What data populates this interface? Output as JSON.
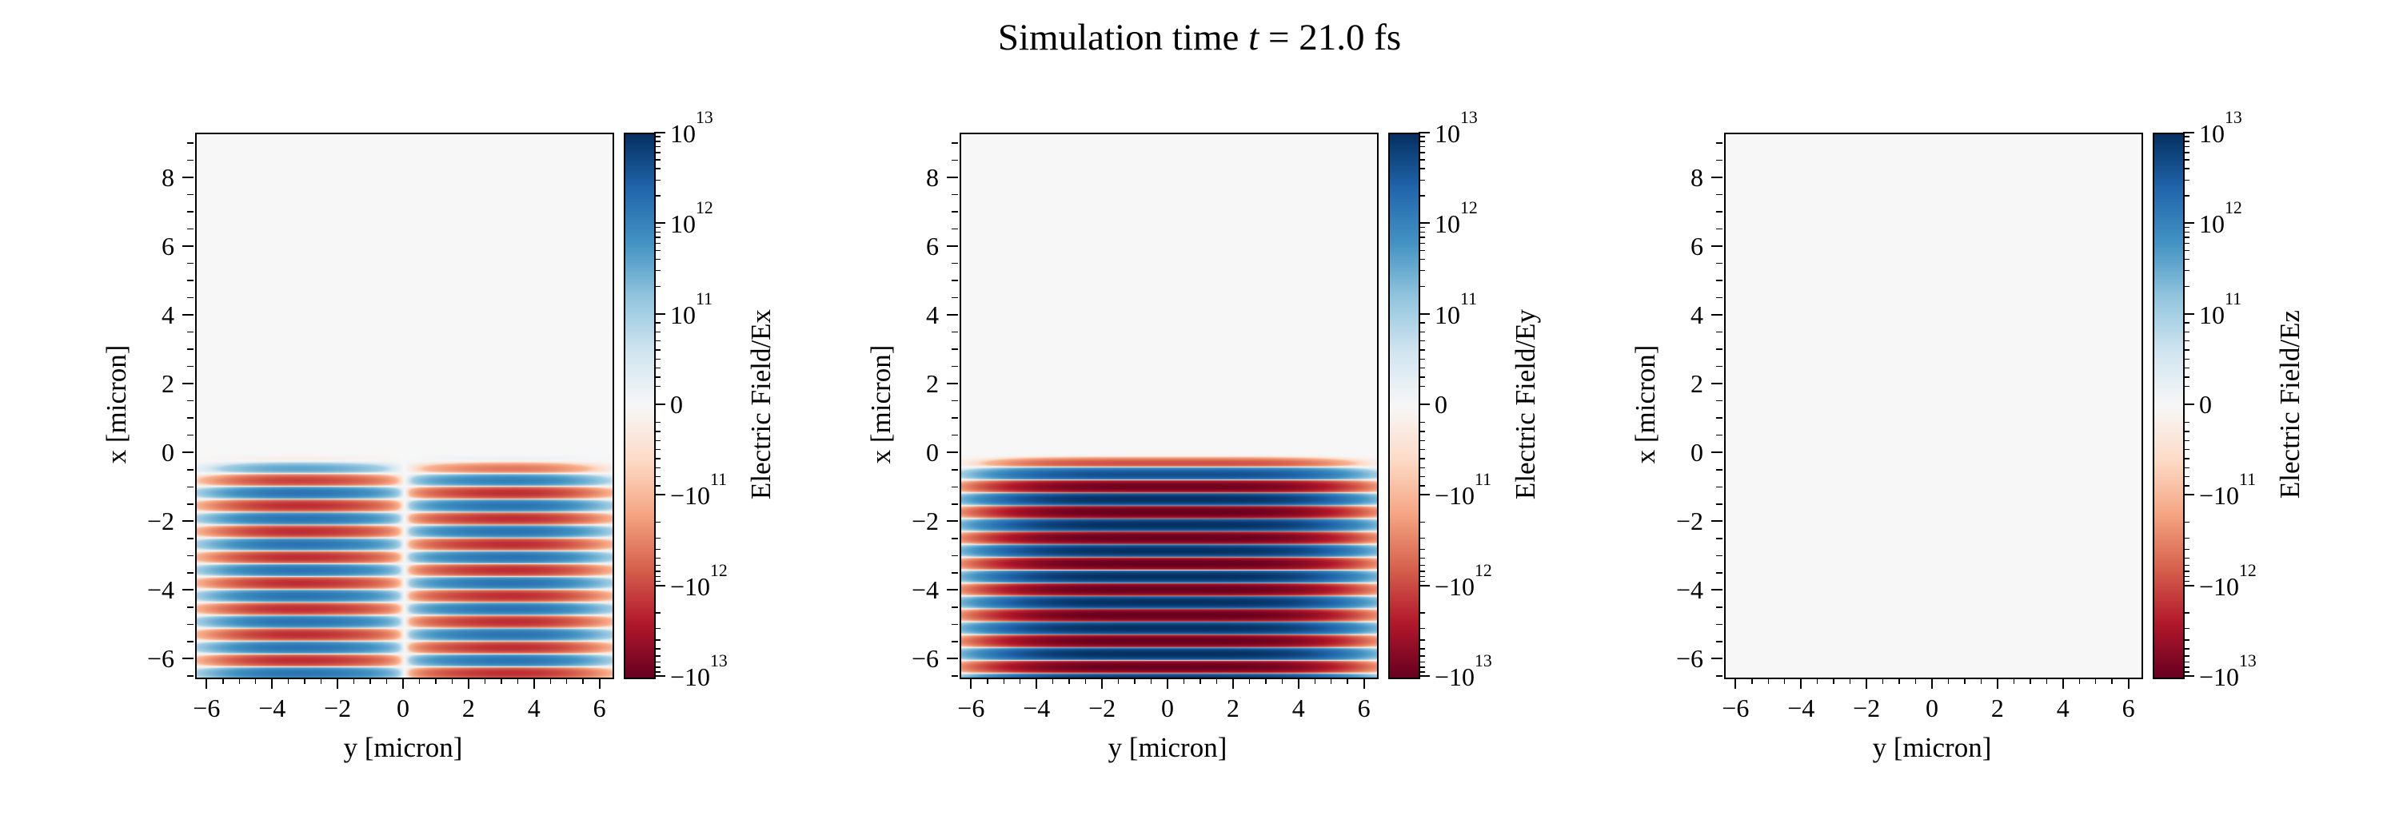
{
  "title": {
    "pre": "Simulation time ",
    "var": "t",
    "post": " = 21.0 fs",
    "time_fs": 21.0
  },
  "colors": {
    "background": "#ffffff",
    "axis": "#000000",
    "text": "#000000",
    "zero_field": "#f7f7f7",
    "colormap_rdbu": [
      "#67001f",
      "#b2182b",
      "#d6604d",
      "#f4a582",
      "#fddbc7",
      "#f7f7f7",
      "#d1e5f0",
      "#92c5de",
      "#4393c3",
      "#2166ac",
      "#053061"
    ]
  },
  "chart_data": [
    {
      "type": "heatmap",
      "xlabel": "y [micron]",
      "ylabel": "x [micron]",
      "xlim": [
        -6.35,
        6.35
      ],
      "ylim": [
        -6.5,
        9.3
      ],
      "xticks": [
        -6,
        -4,
        -2,
        0,
        2,
        4,
        6
      ],
      "yticks": [
        -6,
        -4,
        -2,
        0,
        2,
        4,
        6,
        8
      ],
      "xtick_labels": [
        "−6",
        "−4",
        "−2",
        "0",
        "2",
        "4",
        "6"
      ],
      "ytick_labels": [
        "−6",
        "−4",
        "−2",
        "0",
        "2",
        "4",
        "6",
        "8"
      ],
      "minor_step": 0.5,
      "colormap": "RdBu",
      "norm": "symlog",
      "linthresh": 100000000000.0,
      "vmin": -10000000000000.0,
      "vmax": 10000000000000.0,
      "colorbar": {
        "label": "Electric Field/Ex",
        "tick_values": [
          10000000000000.0,
          1000000000000.0,
          100000000000.0,
          0,
          -100000000000.0,
          -1000000000000.0,
          -10000000000000.0
        ],
        "tick_labels": [
          {
            "sign": "",
            "base": "10",
            "exp": "13"
          },
          {
            "sign": "",
            "base": "10",
            "exp": "12"
          },
          {
            "sign": "",
            "base": "10",
            "exp": "11"
          },
          {
            "text": "0"
          },
          {
            "sign": "−",
            "base": "10",
            "exp": "11"
          },
          {
            "sign": "−",
            "base": "10",
            "exp": "12"
          },
          {
            "sign": "−",
            "base": "10",
            "exp": "13"
          }
        ]
      },
      "field": {
        "component": "Ex",
        "model": "laser-pulse",
        "amplitude": 2000000000000.0,
        "wavelength_um": 0.75,
        "phase": 1.5708,
        "front_ramp": 1.2,
        "x_center": -3.6,
        "x_width": 4.2,
        "x_power": 8,
        "y_profile": "antisymmetric",
        "y_node_scale": 3.0,
        "y_width": 4.6,
        "y_power": 4
      }
    },
    {
      "type": "heatmap",
      "xlabel": "y [micron]",
      "ylabel": "x [micron]",
      "xlim": [
        -6.35,
        6.35
      ],
      "ylim": [
        -6.5,
        9.3
      ],
      "xticks": [
        -6,
        -4,
        -2,
        0,
        2,
        4,
        6
      ],
      "yticks": [
        -6,
        -4,
        -2,
        0,
        2,
        4,
        6,
        8
      ],
      "xtick_labels": [
        "−6",
        "−4",
        "−2",
        "0",
        "2",
        "4",
        "6"
      ],
      "ytick_labels": [
        "−6",
        "−4",
        "−2",
        "0",
        "2",
        "4",
        "6",
        "8"
      ],
      "minor_step": 0.5,
      "colormap": "RdBu",
      "norm": "symlog",
      "linthresh": 100000000000.0,
      "vmin": -10000000000000.0,
      "vmax": 10000000000000.0,
      "colorbar": {
        "label": "Electric Field/Ey",
        "tick_values": [
          10000000000000.0,
          1000000000000.0,
          100000000000.0,
          0,
          -100000000000.0,
          -1000000000000.0,
          -10000000000000.0
        ],
        "tick_labels": [
          {
            "sign": "",
            "base": "10",
            "exp": "13"
          },
          {
            "sign": "",
            "base": "10",
            "exp": "12"
          },
          {
            "sign": "",
            "base": "10",
            "exp": "11"
          },
          {
            "text": "0"
          },
          {
            "sign": "−",
            "base": "10",
            "exp": "11"
          },
          {
            "sign": "−",
            "base": "10",
            "exp": "12"
          },
          {
            "sign": "−",
            "base": "10",
            "exp": "13"
          }
        ]
      },
      "field": {
        "component": "Ey",
        "model": "laser-pulse",
        "amplitude": 10000000000000.0,
        "wavelength_um": 0.75,
        "phase": 0,
        "front_ramp": 1.2,
        "x_center": -3.6,
        "x_width": 4.2,
        "x_power": 8,
        "y_profile": "gaussian",
        "y_node_scale": 3.0,
        "y_width": 4.6,
        "y_power": 4
      }
    },
    {
      "type": "heatmap",
      "xlabel": "y [micron]",
      "ylabel": "x [micron]",
      "xlim": [
        -6.35,
        6.35
      ],
      "ylim": [
        -6.5,
        9.3
      ],
      "xticks": [
        -6,
        -4,
        -2,
        0,
        2,
        4,
        6
      ],
      "yticks": [
        -6,
        -4,
        -2,
        0,
        2,
        4,
        6,
        8
      ],
      "xtick_labels": [
        "−6",
        "−4",
        "−2",
        "0",
        "2",
        "4",
        "6"
      ],
      "ytick_labels": [
        "−6",
        "−4",
        "−2",
        "0",
        "2",
        "4",
        "6",
        "8"
      ],
      "minor_step": 0.5,
      "colormap": "RdBu",
      "norm": "symlog",
      "linthresh": 100000000000.0,
      "vmin": -10000000000000.0,
      "vmax": 10000000000000.0,
      "colorbar": {
        "label": "Electric Field/Ez",
        "tick_values": [
          10000000000000.0,
          1000000000000.0,
          100000000000.0,
          0,
          -100000000000.0,
          -1000000000000.0,
          -10000000000000.0
        ],
        "tick_labels": [
          {
            "sign": "",
            "base": "10",
            "exp": "13"
          },
          {
            "sign": "",
            "base": "10",
            "exp": "12"
          },
          {
            "sign": "",
            "base": "10",
            "exp": "11"
          },
          {
            "text": "0"
          },
          {
            "sign": "−",
            "base": "10",
            "exp": "11"
          },
          {
            "sign": "−",
            "base": "10",
            "exp": "12"
          },
          {
            "sign": "−",
            "base": "10",
            "exp": "13"
          }
        ]
      },
      "field": {
        "component": "Ez",
        "model": "zero",
        "amplitude": 0,
        "wavelength_um": 0.75,
        "phase": 0,
        "front_ramp": 1.2,
        "x_center": -3.6,
        "x_width": 4.2,
        "x_power": 8,
        "y_profile": "gaussian",
        "y_node_scale": 3.0,
        "y_width": 4.6,
        "y_power": 4
      }
    }
  ]
}
